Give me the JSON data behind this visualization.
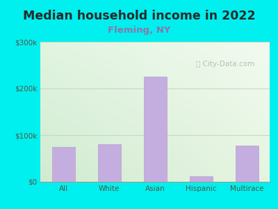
{
  "title": "Median household income in 2022",
  "subtitle": "Fleming, NY",
  "categories": [
    "All",
    "White",
    "Asian",
    "Hispanic",
    "Multirace"
  ],
  "values": [
    75000,
    80000,
    225000,
    12000,
    78000
  ],
  "bar_color": "#c4aee0",
  "bar_edge_color": "#b89ed0",
  "title_fontsize": 12.5,
  "subtitle_fontsize": 9.5,
  "subtitle_color": "#8877aa",
  "title_color": "#2a2a2a",
  "tick_color": "#555544",
  "ylim": [
    0,
    300000
  ],
  "yticks": [
    0,
    100000,
    200000,
    300000
  ],
  "ytick_labels": [
    "$0",
    "$100k",
    "$200k",
    "$300k"
  ],
  "bg_color": "#00efef",
  "plot_bg_tl": "#d8eedd",
  "plot_bg_tr": "#f0f8f0",
  "plot_bg_bl": "#d0e8d8",
  "plot_bg_br": "#e8f5e0",
  "watermark": "City-Data.com",
  "grid_color": "#c8d8c0",
  "bottom_line_color": "#999988"
}
